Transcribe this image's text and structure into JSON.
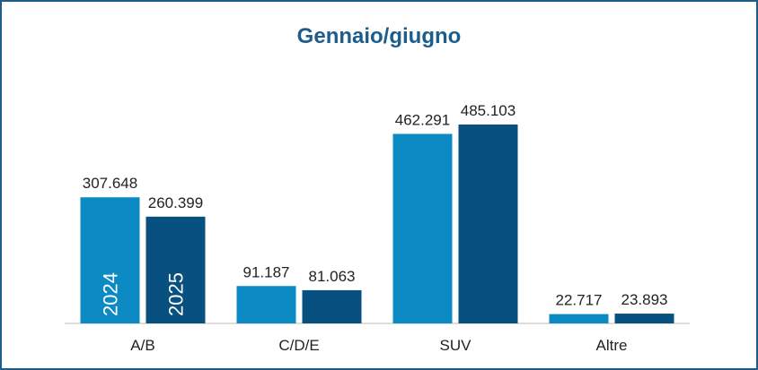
{
  "chart_data": {
    "type": "bar",
    "title": "Gennaio/giugno",
    "categories": [
      "A/B",
      "C/D/E",
      "SUV",
      "Altre"
    ],
    "series": [
      {
        "name": "2024",
        "color": "#0c8ac4",
        "values": [
          307648,
          91187,
          462291,
          22717
        ],
        "value_labels": [
          "307.648",
          "91.187",
          "462.291",
          "22.717"
        ]
      },
      {
        "name": "2025",
        "color": "#08507f",
        "values": [
          260399,
          81063,
          485103,
          23893
        ],
        "value_labels": [
          "260.399",
          "81.063",
          "485.103",
          "23.893"
        ]
      }
    ]
  }
}
